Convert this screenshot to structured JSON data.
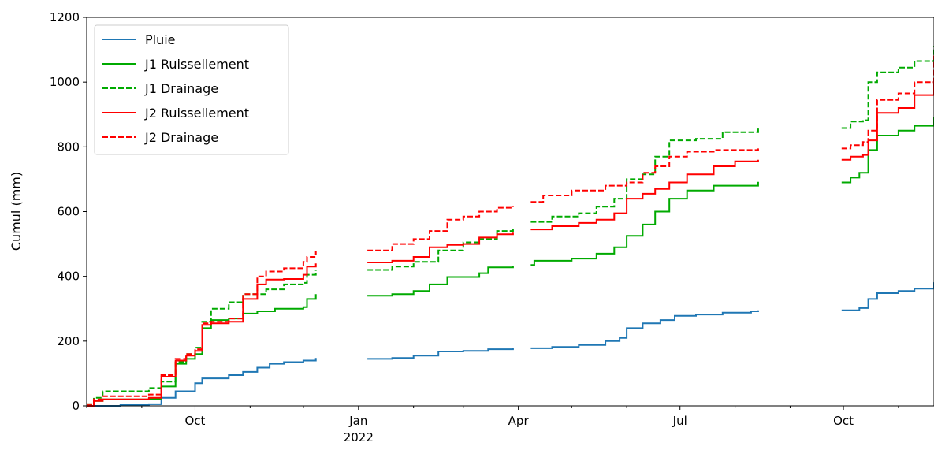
{
  "chart_data": {
    "type": "line",
    "title": "",
    "xlabel": "",
    "ylabel": "Cumul (mm)",
    "ylim": [
      0,
      1200
    ],
    "xlim": [
      "2021-08-01",
      "2022-11-21"
    ],
    "yticks": [
      0,
      200,
      400,
      600,
      800,
      1000,
      1200
    ],
    "xticks": [
      {
        "date": "2021-10-01",
        "label": "Oct",
        "sublabel": ""
      },
      {
        "date": "2022-01-01",
        "label": "Jan",
        "sublabel": "2022"
      },
      {
        "date": "2022-04-01",
        "label": "Apr",
        "sublabel": ""
      },
      {
        "date": "2022-07-01",
        "label": "Jul",
        "sublabel": ""
      },
      {
        "date": "2022-10-01",
        "label": "Oct",
        "sublabel": ""
      }
    ],
    "minor_xticks": [
      "2021-08-01",
      "2021-09-01",
      "2021-11-01",
      "2021-12-01",
      "2022-02-01",
      "2022-03-01",
      "2022-05-01",
      "2022-06-01",
      "2022-08-01",
      "2022-09-01",
      "2022-11-01"
    ],
    "grid": false,
    "legend": "top-left",
    "series": [
      {
        "name": "Pluie",
        "color": "#1f77b4",
        "dash": "solid",
        "segments": [
          [
            [
              "2021-08-01",
              0
            ],
            [
              "2021-08-20",
              3
            ],
            [
              "2021-09-05",
              5
            ],
            [
              "2021-09-12",
              25
            ],
            [
              "2021-09-20",
              45
            ],
            [
              "2021-10-01",
              70
            ],
            [
              "2021-10-05",
              85
            ],
            [
              "2021-10-20",
              95
            ],
            [
              "2021-10-28",
              105
            ],
            [
              "2021-11-05",
              118
            ],
            [
              "2021-11-12",
              130
            ],
            [
              "2021-11-20",
              135
            ],
            [
              "2021-12-01",
              140
            ],
            [
              "2021-12-08",
              148
            ]
          ],
          [
            [
              "2022-01-06",
              145
            ],
            [
              "2022-01-20",
              148
            ],
            [
              "2022-02-01",
              155
            ],
            [
              "2022-02-15",
              168
            ],
            [
              "2022-03-01",
              170
            ],
            [
              "2022-03-15",
              175
            ],
            [
              "2022-03-29",
              178
            ]
          ],
          [
            [
              "2022-04-08",
              178
            ],
            [
              "2022-04-20",
              182
            ],
            [
              "2022-05-05",
              188
            ],
            [
              "2022-05-20",
              200
            ],
            [
              "2022-05-28",
              210
            ],
            [
              "2022-06-01",
              240
            ],
            [
              "2022-06-10",
              255
            ],
            [
              "2022-06-20",
              265
            ],
            [
              "2022-06-28",
              278
            ],
            [
              "2022-07-10",
              282
            ],
            [
              "2022-07-25",
              288
            ],
            [
              "2022-08-10",
              292
            ],
            [
              "2022-08-14",
              295
            ]
          ],
          [
            [
              "2022-09-30",
              295
            ],
            [
              "2022-10-10",
              302
            ],
            [
              "2022-10-15",
              330
            ],
            [
              "2022-10-20",
              348
            ],
            [
              "2022-11-01",
              355
            ],
            [
              "2022-11-10",
              362
            ],
            [
              "2022-11-21",
              382
            ]
          ]
        ]
      },
      {
        "name": "J1 Ruissellement",
        "color": "#00aa00",
        "dash": "solid",
        "segments": [
          [
            [
              "2021-08-01",
              0
            ],
            [
              "2021-08-05",
              15
            ],
            [
              "2021-08-10",
              20
            ],
            [
              "2021-09-05",
              22
            ],
            [
              "2021-09-12",
              60
            ],
            [
              "2021-09-20",
              130
            ],
            [
              "2021-09-26",
              145
            ],
            [
              "2021-10-01",
              160
            ],
            [
              "2021-10-05",
              240
            ],
            [
              "2021-10-10",
              265
            ],
            [
              "2021-10-20",
              270
            ],
            [
              "2021-10-28",
              285
            ],
            [
              "2021-11-05",
              292
            ],
            [
              "2021-11-15",
              300
            ],
            [
              "2021-12-01",
              305
            ],
            [
              "2021-12-03",
              330
            ],
            [
              "2021-12-08",
              345
            ]
          ],
          [
            [
              "2022-01-06",
              340
            ],
            [
              "2022-01-20",
              345
            ],
            [
              "2022-02-01",
              355
            ],
            [
              "2022-02-10",
              375
            ],
            [
              "2022-02-20",
              398
            ],
            [
              "2022-03-10",
              410
            ],
            [
              "2022-03-15",
              428
            ],
            [
              "2022-03-29",
              433
            ]
          ],
          [
            [
              "2022-04-08",
              435
            ],
            [
              "2022-04-10",
              448
            ],
            [
              "2022-05-01",
              455
            ],
            [
              "2022-05-15",
              470
            ],
            [
              "2022-05-25",
              490
            ],
            [
              "2022-06-01",
              525
            ],
            [
              "2022-06-10",
              560
            ],
            [
              "2022-06-17",
              600
            ],
            [
              "2022-06-25",
              640
            ],
            [
              "2022-07-05",
              665
            ],
            [
              "2022-07-20",
              680
            ],
            [
              "2022-08-14",
              692
            ]
          ],
          [
            [
              "2022-09-30",
              690
            ],
            [
              "2022-10-05",
              705
            ],
            [
              "2022-10-10",
              720
            ],
            [
              "2022-10-15",
              790
            ],
            [
              "2022-10-20",
              835
            ],
            [
              "2022-11-01",
              850
            ],
            [
              "2022-11-10",
              865
            ],
            [
              "2022-11-21",
              892
            ]
          ]
        ]
      },
      {
        "name": "J1 Drainage",
        "color": "#00aa00",
        "dash": "dashed",
        "segments": [
          [
            [
              "2021-08-01",
              5
            ],
            [
              "2021-08-05",
              25
            ],
            [
              "2021-08-10",
              45
            ],
            [
              "2021-09-05",
              55
            ],
            [
              "2021-09-12",
              75
            ],
            [
              "2021-09-20",
              135
            ],
            [
              "2021-09-26",
              160
            ],
            [
              "2021-10-01",
              180
            ],
            [
              "2021-10-05",
              260
            ],
            [
              "2021-10-10",
              300
            ],
            [
              "2021-10-20",
              320
            ],
            [
              "2021-10-28",
              345
            ],
            [
              "2021-11-10",
              360
            ],
            [
              "2021-11-20",
              375
            ],
            [
              "2021-12-01",
              380
            ],
            [
              "2021-12-03",
              405
            ],
            [
              "2021-12-08",
              420
            ]
          ],
          [
            [
              "2022-01-06",
              420
            ],
            [
              "2022-01-20",
              430
            ],
            [
              "2022-02-01",
              445
            ],
            [
              "2022-02-15",
              480
            ],
            [
              "2022-03-01",
              505
            ],
            [
              "2022-03-10",
              515
            ],
            [
              "2022-03-20",
              540
            ],
            [
              "2022-03-29",
              552
            ]
          ],
          [
            [
              "2022-04-08",
              568
            ],
            [
              "2022-04-20",
              585
            ],
            [
              "2022-05-05",
              595
            ],
            [
              "2022-05-15",
              615
            ],
            [
              "2022-05-25",
              640
            ],
            [
              "2022-06-01",
              700
            ],
            [
              "2022-06-10",
              715
            ],
            [
              "2022-06-17",
              770
            ],
            [
              "2022-06-25",
              820
            ],
            [
              "2022-07-10",
              825
            ],
            [
              "2022-07-25",
              845
            ],
            [
              "2022-08-14",
              858
            ]
          ],
          [
            [
              "2022-09-30",
              858
            ],
            [
              "2022-10-05",
              878
            ],
            [
              "2022-10-12",
              882
            ],
            [
              "2022-10-15",
              1000
            ],
            [
              "2022-10-20",
              1030
            ],
            [
              "2022-11-01",
              1045
            ],
            [
              "2022-11-10",
              1065
            ],
            [
              "2022-11-21",
              1110
            ]
          ]
        ]
      },
      {
        "name": "J2 Ruissellement",
        "color": "#ff0000",
        "dash": "solid",
        "segments": [
          [
            [
              "2021-08-01",
              0
            ],
            [
              "2021-08-05",
              15
            ],
            [
              "2021-08-10",
              20
            ],
            [
              "2021-09-05",
              25
            ],
            [
              "2021-09-12",
              90
            ],
            [
              "2021-09-20",
              140
            ],
            [
              "2021-09-26",
              155
            ],
            [
              "2021-10-01",
              170
            ],
            [
              "2021-10-05",
              250
            ],
            [
              "2021-10-10",
              255
            ],
            [
              "2021-10-20",
              260
            ],
            [
              "2021-10-28",
              330
            ],
            [
              "2021-11-05",
              375
            ],
            [
              "2021-11-10",
              390
            ],
            [
              "2021-11-20",
              392
            ],
            [
              "2021-12-01",
              405
            ],
            [
              "2021-12-03",
              430
            ],
            [
              "2021-12-08",
              440
            ]
          ],
          [
            [
              "2022-01-06",
              443
            ],
            [
              "2022-01-20",
              448
            ],
            [
              "2022-02-01",
              460
            ],
            [
              "2022-02-10",
              490
            ],
            [
              "2022-02-20",
              497
            ],
            [
              "2022-03-01",
              500
            ],
            [
              "2022-03-10",
              520
            ],
            [
              "2022-03-20",
              530
            ],
            [
              "2022-03-29",
              535
            ]
          ],
          [
            [
              "2022-04-08",
              545
            ],
            [
              "2022-04-20",
              555
            ],
            [
              "2022-05-05",
              565
            ],
            [
              "2022-05-15",
              575
            ],
            [
              "2022-05-25",
              595
            ],
            [
              "2022-06-01",
              640
            ],
            [
              "2022-06-10",
              655
            ],
            [
              "2022-06-17",
              670
            ],
            [
              "2022-06-25",
              690
            ],
            [
              "2022-07-05",
              715
            ],
            [
              "2022-07-20",
              740
            ],
            [
              "2022-08-01",
              755
            ],
            [
              "2022-08-14",
              760
            ]
          ],
          [
            [
              "2022-09-30",
              760
            ],
            [
              "2022-10-05",
              770
            ],
            [
              "2022-10-12",
              775
            ],
            [
              "2022-10-15",
              820
            ],
            [
              "2022-10-20",
              905
            ],
            [
              "2022-11-01",
              920
            ],
            [
              "2022-11-10",
              960
            ],
            [
              "2022-11-21",
              1012
            ]
          ]
        ]
      },
      {
        "name": "J2 Drainage",
        "color": "#ff0000",
        "dash": "dashed",
        "segments": [
          [
            [
              "2021-08-01",
              5
            ],
            [
              "2021-08-05",
              20
            ],
            [
              "2021-08-10",
              30
            ],
            [
              "2021-09-05",
              35
            ],
            [
              "2021-09-12",
              95
            ],
            [
              "2021-09-20",
              145
            ],
            [
              "2021-09-26",
              160
            ],
            [
              "2021-10-01",
              175
            ],
            [
              "2021-10-05",
              255
            ],
            [
              "2021-10-10",
              260
            ],
            [
              "2021-10-20",
              270
            ],
            [
              "2021-10-28",
              345
            ],
            [
              "2021-11-05",
              400
            ],
            [
              "2021-11-10",
              415
            ],
            [
              "2021-11-20",
              425
            ],
            [
              "2021-12-01",
              445
            ],
            [
              "2021-12-03",
              460
            ],
            [
              "2021-12-08",
              478
            ]
          ],
          [
            [
              "2022-01-06",
              480
            ],
            [
              "2022-01-20",
              500
            ],
            [
              "2022-02-01",
              515
            ],
            [
              "2022-02-10",
              540
            ],
            [
              "2022-02-20",
              575
            ],
            [
              "2022-03-01",
              585
            ],
            [
              "2022-03-10",
              600
            ],
            [
              "2022-03-20",
              612
            ],
            [
              "2022-03-29",
              618
            ]
          ],
          [
            [
              "2022-04-08",
              630
            ],
            [
              "2022-04-15",
              650
            ],
            [
              "2022-05-01",
              665
            ],
            [
              "2022-05-20",
              680
            ],
            [
              "2022-06-01",
              690
            ],
            [
              "2022-06-10",
              720
            ],
            [
              "2022-06-17",
              740
            ],
            [
              "2022-06-25",
              770
            ],
            [
              "2022-07-05",
              785
            ],
            [
              "2022-07-20",
              790
            ],
            [
              "2022-08-14",
              795
            ]
          ],
          [
            [
              "2022-09-30",
              795
            ],
            [
              "2022-10-05",
              805
            ],
            [
              "2022-10-12",
              815
            ],
            [
              "2022-10-15",
              850
            ],
            [
              "2022-10-20",
              945
            ],
            [
              "2022-11-01",
              965
            ],
            [
              "2022-11-10",
              1000
            ],
            [
              "2022-11-21",
              1082
            ]
          ]
        ]
      }
    ]
  }
}
